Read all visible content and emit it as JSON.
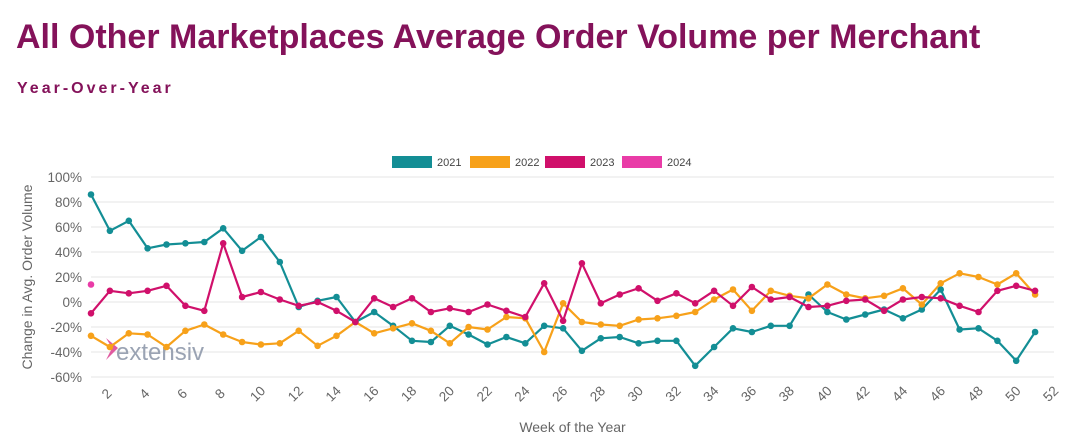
{
  "header": {
    "title": "All Other Marketplaces Average Order Volume per Merchant",
    "subtitle": "Year-Over-Year"
  },
  "watermark": "extensiv",
  "chart_data": {
    "type": "line",
    "xlabel": "Week of the Year",
    "ylabel": "Change in Avg. Order Volume",
    "xlim": [
      2,
      52
    ],
    "ylim": [
      -60,
      100
    ],
    "x_ticks": [
      2,
      4,
      6,
      8,
      10,
      12,
      14,
      16,
      18,
      20,
      22,
      24,
      26,
      28,
      30,
      32,
      34,
      36,
      38,
      40,
      42,
      44,
      46,
      48,
      50,
      52
    ],
    "y_ticks": [
      {
        "value": 100,
        "label": "100%"
      },
      {
        "value": 80,
        "label": "80%"
      },
      {
        "value": 60,
        "label": "60%"
      },
      {
        "value": 40,
        "label": "40%"
      },
      {
        "value": 20,
        "label": "20%"
      },
      {
        "value": 0,
        "label": "0%"
      },
      {
        "value": -20,
        "label": "-20%"
      },
      {
        "value": -40,
        "label": "-40%"
      },
      {
        "value": -60,
        "label": "-60%"
      }
    ],
    "legend_position": "top-center",
    "series": [
      {
        "name": "2021",
        "color": "#138e95",
        "x_start": 1,
        "values": [
          86,
          57,
          65,
          43,
          46,
          47,
          48,
          59,
          41,
          52,
          32,
          -4,
          1,
          4,
          -16,
          -8,
          -19,
          -31,
          -32,
          -19,
          -26,
          -34,
          -28,
          -33,
          -19,
          -21,
          -39,
          -29,
          -28,
          -33,
          -31,
          -31,
          -51,
          -36,
          -21,
          -24,
          -19,
          -19,
          6,
          -8,
          -14,
          -10,
          -6,
          -13,
          -6,
          10,
          -22,
          -21,
          -31,
          -47,
          -24
        ]
      },
      {
        "name": "2022",
        "color": "#f7a11a",
        "x_start": 1,
        "values": [
          -27,
          -36,
          -25,
          -26,
          -36,
          -23,
          -18,
          -26,
          -32,
          -34,
          -33,
          -23,
          -35,
          -27,
          -16,
          -25,
          -21,
          -17,
          -23,
          -33,
          -20,
          -22,
          -12,
          -13,
          -40,
          -1,
          -16,
          -18,
          -19,
          -14,
          -13,
          -11,
          -8,
          2,
          10,
          -7,
          9,
          5,
          3,
          14,
          6,
          3,
          5,
          11,
          -2,
          15,
          23,
          20,
          14,
          23,
          6
        ]
      },
      {
        "name": "2023",
        "color": "#d0106b",
        "x_start": 1,
        "values": [
          -9,
          9,
          7,
          9,
          13,
          -3,
          -7,
          47,
          4,
          8,
          2,
          -3,
          0,
          -7,
          -16,
          3,
          -4,
          3,
          -8,
          -5,
          -8,
          -2,
          -7,
          -12,
          15,
          -15,
          31,
          -1,
          6,
          11,
          1,
          7,
          -1,
          9,
          -3,
          12,
          2,
          4,
          -4,
          -3,
          1,
          2,
          -7,
          2,
          4,
          3,
          -3,
          -8,
          9,
          13,
          9
        ]
      },
      {
        "name": "2024",
        "color": "#e93ca7",
        "x_start": 1,
        "values": [
          14
        ]
      }
    ]
  }
}
